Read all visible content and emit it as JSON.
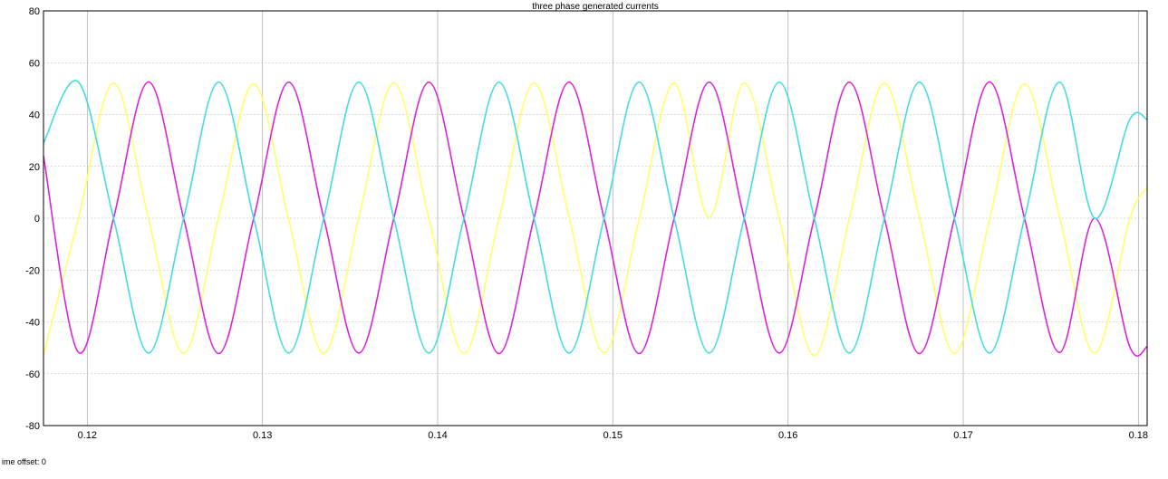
{
  "chart_data": {
    "type": "line",
    "title": "three phase generated currents",
    "xlabel": "",
    "ylabel": "",
    "xlim": [
      0.1175,
      0.1805
    ],
    "ylim": [
      -80,
      80
    ],
    "x_ticks": [
      0.12,
      0.13,
      0.14,
      0.15,
      0.16,
      0.17,
      0.18
    ],
    "x_tick_labels": [
      "0.12",
      "0.13",
      "0.14",
      "0.15",
      "0.16",
      "0.17",
      "0.18"
    ],
    "y_ticks": [
      -80,
      -60,
      -40,
      -20,
      0,
      20,
      40,
      60,
      80
    ],
    "y_tick_labels": [
      "-80",
      "-60",
      "-40",
      "-20",
      "0",
      "20",
      "40",
      "60",
      "80"
    ],
    "grid": true,
    "background_color": "#ffffff",
    "grid_color": "#b4b4b4",
    "series": [
      {
        "color": "#ffff66",
        "x": [
          0.1175,
          0.1195,
          0.1215,
          0.1235,
          0.1255,
          0.1275,
          0.1295,
          0.1315,
          0.1335,
          0.1355,
          0.1375,
          0.1395,
          0.1415,
          0.1435,
          0.1455,
          0.1475,
          0.1495,
          0.1515,
          0.1535,
          0.1555,
          0.1575,
          0.1595,
          0.1615,
          0.1635,
          0.1655,
          0.1675,
          0.1695,
          0.1715,
          0.1735,
          0.1755,
          0.1775,
          0.1795,
          0.1805
        ],
        "y": [
          -52.9,
          0.1,
          52.1,
          -0.3,
          -52.1,
          0.5,
          51.9,
          -0.6,
          -52.1,
          0.3,
          52.2,
          0.0,
          -52.2,
          -0.3,
          52.1,
          0.6,
          -51.9,
          -0.5,
          52.1,
          0.3,
          52.1,
          -0.1,
          -52.9,
          -0.1,
          52.1,
          0.3,
          -52.1,
          -0.5,
          51.9,
          0.6,
          -52.1,
          -0.3,
          12.0
        ]
      },
      {
        "color": "#dd22dd",
        "x": [
          0.1175,
          0.1195,
          0.1215,
          0.1235,
          0.1255,
          0.1275,
          0.1295,
          0.1315,
          0.1335,
          0.1355,
          0.1375,
          0.1395,
          0.1415,
          0.1435,
          0.1455,
          0.1475,
          0.1495,
          0.1515,
          0.1535,
          0.1555,
          0.1575,
          0.1595,
          0.1615,
          0.1635,
          0.1655,
          0.1675,
          0.1695,
          0.1715,
          0.1735,
          0.1755,
          0.1775,
          0.1795,
          0.1805
        ],
        "y": [
          24.0,
          -51.8,
          0.0,
          52.6,
          0.0,
          -52.2,
          0.0,
          52.5,
          0.0,
          -52.0,
          0.0,
          52.5,
          0.0,
          -52.2,
          0.0,
          52.5,
          0.0,
          -52.2,
          0.0,
          52.5,
          0.0,
          -52.0,
          0.0,
          52.5,
          0.0,
          -52.2,
          0.0,
          52.6,
          0.0,
          -51.8,
          0.0,
          -49.5,
          -49.5
        ]
      },
      {
        "color": "#44dddd",
        "x": [
          0.1175,
          0.1195,
          0.1215,
          0.1235,
          0.1255,
          0.1275,
          0.1295,
          0.1315,
          0.1335,
          0.1355,
          0.1375,
          0.1395,
          0.1415,
          0.1435,
          0.1455,
          0.1475,
          0.1495,
          0.1515,
          0.1535,
          0.1555,
          0.1575,
          0.1595,
          0.1615,
          0.1635,
          0.1655,
          0.1675,
          0.1695,
          0.1715,
          0.1735,
          0.1755,
          0.1775,
          0.1795,
          0.1805
        ],
        "y": [
          29.0,
          52.5,
          0.0,
          -52.0,
          0.0,
          52.5,
          0.0,
          -52.0,
          0.0,
          52.5,
          0.0,
          -52.0,
          0.0,
          52.5,
          0.0,
          -52.0,
          0.0,
          52.5,
          0.0,
          -52.0,
          0.0,
          52.5,
          0.0,
          -52.0,
          0.0,
          52.5,
          0.0,
          -52.0,
          0.0,
          52.5,
          0.0,
          38.0,
          38.0
        ]
      }
    ]
  },
  "status": {
    "time_offset": "ime offset: 0"
  }
}
